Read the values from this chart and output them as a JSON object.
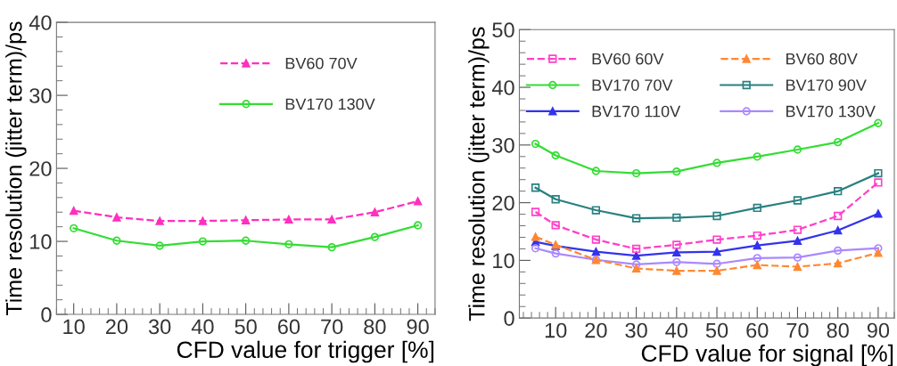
{
  "chart_data": [
    {
      "type": "line",
      "xlabel": "CFD value for trigger [%]",
      "ylabel": "Time resolution (jitter term)/ps",
      "x": [
        10,
        20,
        30,
        40,
        50,
        60,
        70,
        80,
        90
      ],
      "xlim": [
        6,
        94
      ],
      "xticks": [
        10,
        20,
        30,
        40,
        50,
        60,
        70,
        80,
        90
      ],
      "ylim": [
        0,
        40
      ],
      "yticks": [
        0,
        10,
        20,
        30,
        40
      ],
      "grid": false,
      "legend": "top right",
      "series": [
        {
          "name": "BV60 70V",
          "color": "#ff2fbf",
          "marker": "triangle",
          "line_style": "dashed",
          "values": [
            14.2,
            13.3,
            12.8,
            12.8,
            12.9,
            13.0,
            13.0,
            14.0,
            15.5
          ]
        },
        {
          "name": "BV170 130V",
          "color": "#33dd33",
          "marker": "circle",
          "line_style": "solid",
          "values": [
            11.8,
            10.1,
            9.4,
            10.0,
            10.1,
            9.6,
            9.2,
            10.6,
            12.2
          ]
        }
      ]
    },
    {
      "type": "line",
      "xlabel": "CFD value for signal [%]",
      "ylabel": "Time resolution (jitter term)/ps",
      "x": [
        5,
        10,
        20,
        30,
        40,
        50,
        60,
        70,
        80,
        90
      ],
      "xlim": [
        1,
        94
      ],
      "xticks": [
        10,
        20,
        30,
        40,
        50,
        60,
        70,
        80,
        90
      ],
      "ylim": [
        0,
        50
      ],
      "yticks": [
        0,
        10,
        20,
        30,
        40,
        50
      ],
      "grid": false,
      "legend": "top",
      "series": [
        {
          "name": "BV60 60V",
          "color": "#ff40c8",
          "marker": "square",
          "line_style": "dashed",
          "values": [
            18.4,
            16.1,
            13.6,
            12.0,
            12.7,
            13.6,
            14.3,
            15.3,
            17.7,
            23.5
          ]
        },
        {
          "name": "BV60 80V",
          "color": "#ff8833",
          "marker": "triangle",
          "line_style": "dashed",
          "values": [
            14.1,
            12.7,
            10.1,
            8.6,
            8.2,
            8.2,
            9.2,
            8.9,
            9.5,
            11.3
          ]
        },
        {
          "name": "BV170 70V",
          "color": "#33dd33",
          "marker": "circle",
          "line_style": "solid",
          "values": [
            30.2,
            28.2,
            25.5,
            25.1,
            25.4,
            26.9,
            28.0,
            29.2,
            30.5,
            33.8
          ]
        },
        {
          "name": "BV170 90V",
          "color": "#2a8080",
          "marker": "square",
          "line_style": "solid",
          "values": [
            22.6,
            20.6,
            18.7,
            17.3,
            17.4,
            17.7,
            19.1,
            20.4,
            22.0,
            25.1
          ]
        },
        {
          "name": "BV170 110V",
          "color": "#3333ee",
          "marker": "triangle",
          "line_style": "solid",
          "values": [
            13.2,
            12.5,
            11.5,
            10.8,
            11.4,
            11.5,
            12.6,
            13.4,
            15.2,
            18.1
          ]
        },
        {
          "name": "BV170 130V",
          "color": "#aa88ff",
          "marker": "circle",
          "line_style": "solid",
          "values": [
            12.1,
            11.2,
            10.1,
            9.3,
            9.7,
            9.4,
            10.4,
            10.5,
            11.7,
            12.1
          ]
        }
      ]
    }
  ]
}
